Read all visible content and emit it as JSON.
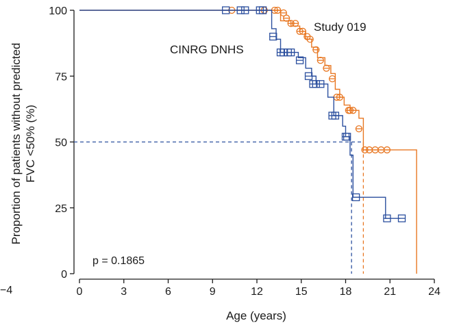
{
  "chart_data": {
    "type": "line",
    "subtype": "kaplan-meier",
    "title": "",
    "xlabel": "Age (years)",
    "ylabel_lines": [
      "Proportion of patients without predicted",
      "FVC <50% (%)"
    ],
    "xlim": [
      0,
      24
    ],
    "ylim": [
      0,
      100
    ],
    "x_ticks": [
      "0",
      "3",
      "6",
      "9",
      "12",
      "15",
      "18",
      "21",
      "24"
    ],
    "y_ticks": [
      "0",
      "25",
      "50",
      "75",
      "100"
    ],
    "left_clipped_tick": "−4",
    "grid": false,
    "legend": "inline labels",
    "annotation": "p = 0.1865",
    "colors": {
      "orange": "#e87722",
      "blue": "#2b4f9e",
      "axis": "#1a1a1a"
    },
    "series": [
      {
        "name": "Study 019",
        "color": "#e87722",
        "marker": "circle-censor",
        "steps": [
          [
            0,
            100
          ],
          [
            13.6,
            96
          ],
          [
            14.3,
            94
          ],
          [
            14.9,
            92
          ],
          [
            15.3,
            89
          ],
          [
            15.7,
            86
          ],
          [
            16.1,
            82
          ],
          [
            16.6,
            79
          ],
          [
            17.0,
            76
          ],
          [
            17.3,
            70
          ],
          [
            17.6,
            67
          ],
          [
            17.9,
            64
          ],
          [
            18.3,
            62
          ],
          [
            18.9,
            59
          ],
          [
            19.2,
            47
          ],
          [
            22.8,
            0
          ]
        ],
        "censors": [
          [
            10.3,
            100
          ],
          [
            12.5,
            100
          ],
          [
            13.2,
            100
          ],
          [
            13.4,
            100
          ],
          [
            13.8,
            99
          ],
          [
            14.0,
            97
          ],
          [
            14.3,
            95
          ],
          [
            14.6,
            95
          ],
          [
            14.9,
            92
          ],
          [
            15.1,
            92
          ],
          [
            15.4,
            90
          ],
          [
            15.6,
            89
          ],
          [
            16.0,
            85
          ],
          [
            16.3,
            81
          ],
          [
            16.7,
            78
          ],
          [
            17.1,
            74
          ],
          [
            17.4,
            67
          ],
          [
            17.6,
            67
          ],
          [
            18.2,
            62
          ],
          [
            18.3,
            62
          ],
          [
            18.5,
            62
          ],
          [
            18.9,
            55
          ],
          [
            19.3,
            47
          ],
          [
            19.6,
            47
          ],
          [
            20.0,
            47
          ],
          [
            20.4,
            47
          ],
          [
            20.8,
            47
          ]
        ],
        "median": 19.2
      },
      {
        "name": "CINRG DNHS",
        "color": "#2b4f9e",
        "marker": "square-censor",
        "steps": [
          [
            0,
            100
          ],
          [
            12.6,
            100
          ],
          [
            13.0,
            93
          ],
          [
            13.3,
            89
          ],
          [
            13.6,
            84
          ],
          [
            14.8,
            82
          ],
          [
            15.3,
            78
          ],
          [
            15.7,
            75
          ],
          [
            16.0,
            72
          ],
          [
            16.8,
            67
          ],
          [
            17.2,
            60
          ],
          [
            17.8,
            56
          ],
          [
            18.0,
            52
          ],
          [
            18.3,
            45
          ],
          [
            18.5,
            29
          ],
          [
            20.7,
            21
          ],
          [
            21.7,
            21
          ]
        ],
        "censors": [
          [
            9.9,
            100
          ],
          [
            10.9,
            100
          ],
          [
            11.2,
            100
          ],
          [
            12.2,
            100
          ],
          [
            12.4,
            100
          ],
          [
            13.1,
            90
          ],
          [
            13.6,
            84
          ],
          [
            13.8,
            84
          ],
          [
            14.1,
            84
          ],
          [
            14.3,
            84
          ],
          [
            14.9,
            81
          ],
          [
            15.5,
            75
          ],
          [
            15.8,
            72
          ],
          [
            16.0,
            72
          ],
          [
            16.3,
            72
          ],
          [
            17.1,
            60
          ],
          [
            17.3,
            60
          ],
          [
            18.0,
            52
          ],
          [
            18.1,
            52
          ],
          [
            18.7,
            29
          ],
          [
            20.8,
            21
          ],
          [
            21.8,
            21
          ]
        ],
        "median": 18.4
      }
    ],
    "reference_line": {
      "y": 50
    }
  }
}
